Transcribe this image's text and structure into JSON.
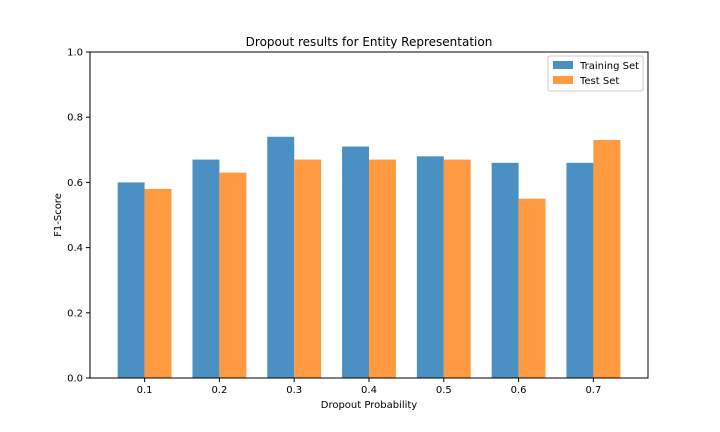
{
  "chart_data": {
    "type": "bar",
    "title": "Dropout results for Entity Representation",
    "xlabel": "Dropout Probability",
    "ylabel": "F1-Score",
    "categories": [
      "0.1",
      "0.2",
      "0.3",
      "0.4",
      "0.5",
      "0.6",
      "0.7"
    ],
    "series": [
      {
        "name": "Training Set",
        "color": "#4a90c2",
        "values": [
          0.6,
          0.67,
          0.74,
          0.71,
          0.68,
          0.66,
          0.66
        ]
      },
      {
        "name": "Test Set",
        "color": "#ff9a40",
        "values": [
          0.58,
          0.63,
          0.67,
          0.67,
          0.67,
          0.55,
          0.73
        ]
      }
    ],
    "ylim": [
      0,
      1.0
    ],
    "yticks": [
      "0.0",
      "0.2",
      "0.4",
      "0.6",
      "0.8",
      "1.0"
    ],
    "grid": false,
    "legend_position": "top-right"
  }
}
